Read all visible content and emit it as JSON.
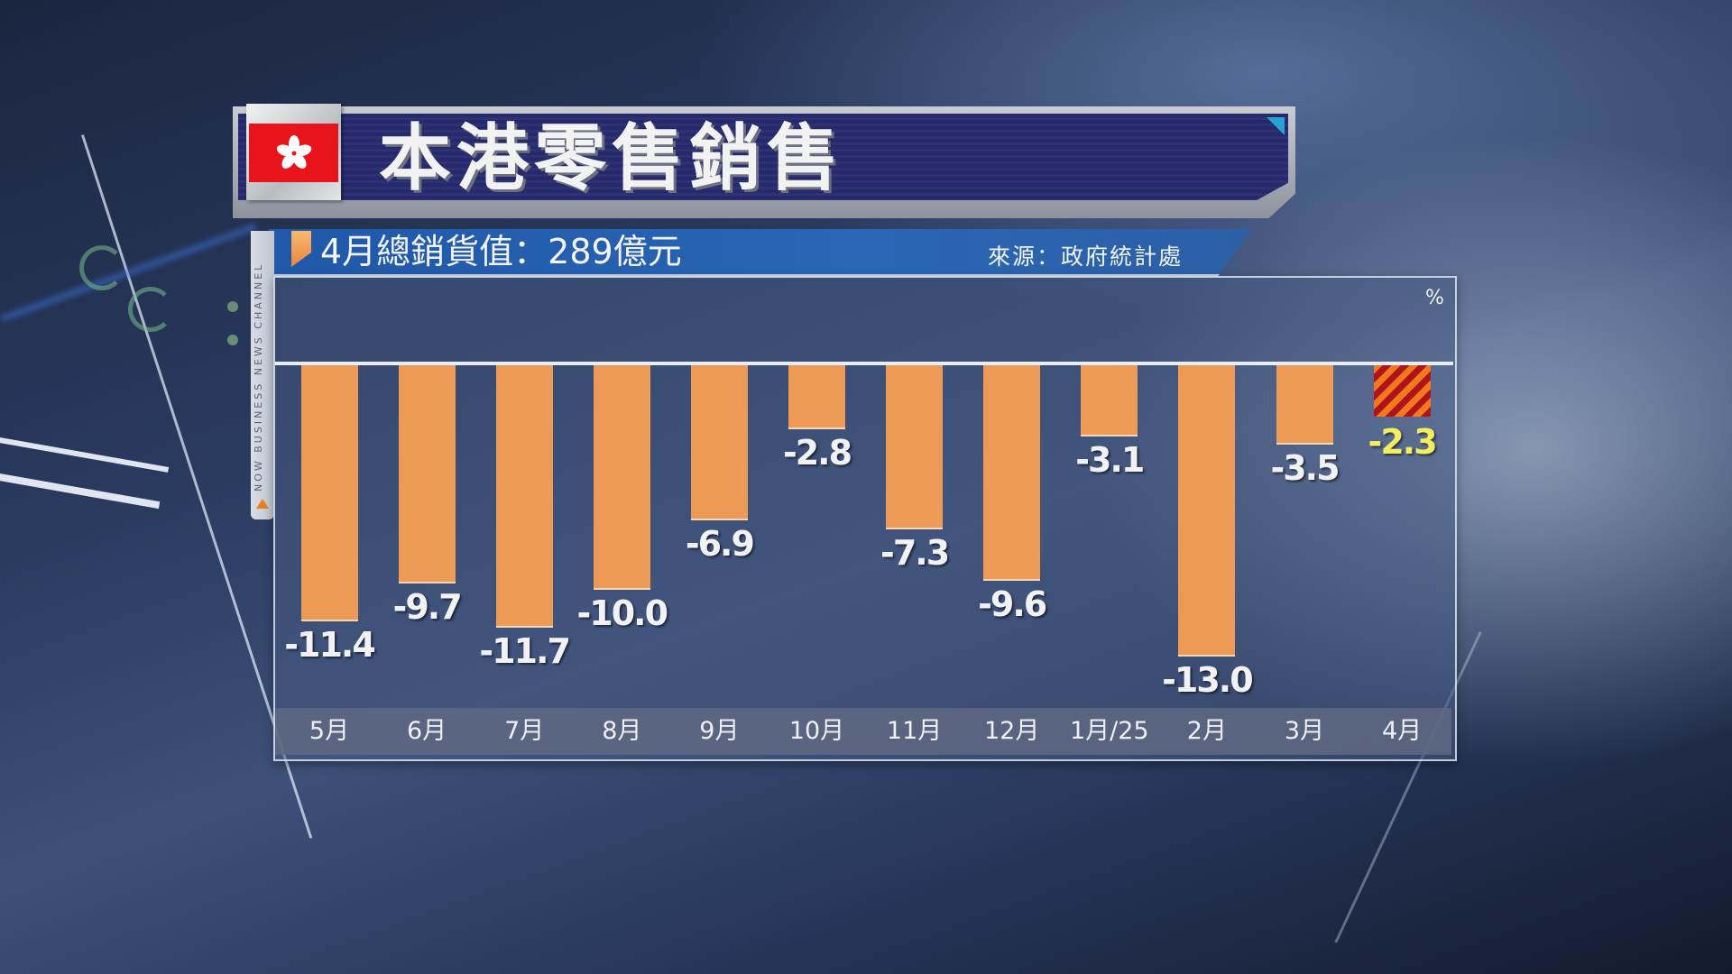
{
  "title": "本港零售銷售",
  "subtitle": "4月總銷貨值：289億元",
  "source": "來源：政府統計處",
  "channel_strip": "NOW BUSINESS NEWS CHANNEL",
  "unit_label": "%",
  "colors": {
    "bar": "#ec9a55",
    "highlight_bar_stripe_1": "#f07a1f",
    "highlight_bar_stripe_2": "#b0141a",
    "highlight_label": "#f3ee5c",
    "title_bg": "#262a6a",
    "subtitle_bg": "#2a66b4",
    "flag_red": "#e8141b"
  },
  "chart_data": {
    "type": "bar",
    "title": "本港零售銷售",
    "subtitle": "4月總銷貨值：289億元",
    "source": "來源：政府統計處",
    "xlabel": "",
    "ylabel": "%",
    "categories": [
      "5月",
      "6月",
      "7月",
      "8月",
      "9月",
      "10月",
      "11月",
      "12月",
      "1月/25",
      "2月",
      "3月",
      "4月"
    ],
    "values": [
      -11.4,
      -9.7,
      -11.7,
      -10.0,
      -6.9,
      -2.8,
      -7.3,
      -9.6,
      -3.1,
      -13.0,
      -3.5,
      -2.3
    ],
    "value_labels": [
      "-11.4",
      "-9.7",
      "-11.7",
      "-10.0",
      "-6.9",
      "-2.8",
      "-7.3",
      "-9.6",
      "-3.1",
      "-13.0",
      "-3.5",
      "-2.3"
    ],
    "highlight_index": 11,
    "ylim": [
      -14,
      0
    ],
    "grid": false,
    "legend": null
  }
}
